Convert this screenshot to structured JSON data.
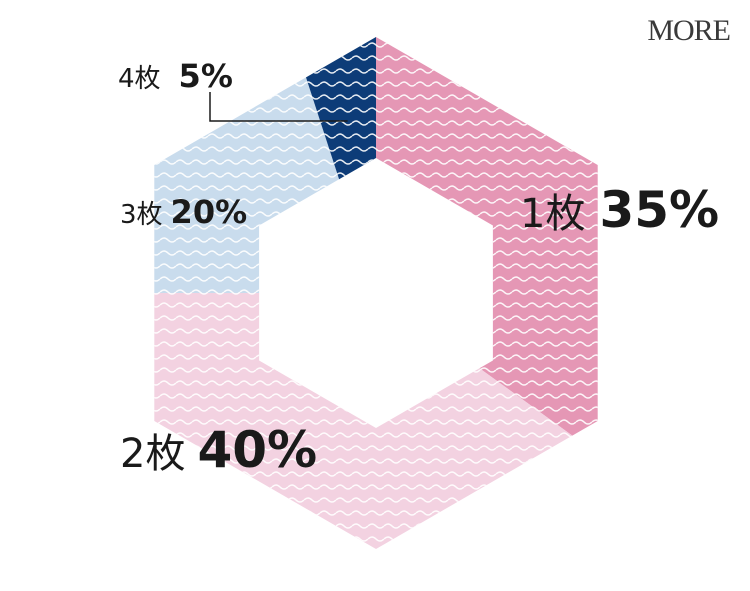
{
  "brand": {
    "logo_text": "MORE"
  },
  "chart_data": {
    "type": "pie",
    "shape": "hexagonal donut",
    "categories": [
      "1枚",
      "2枚",
      "3枚",
      "4枚"
    ],
    "values": [
      35,
      40,
      20,
      5
    ],
    "value_labels": [
      "35%",
      "40%",
      "20%",
      "5%"
    ],
    "colors": [
      "#e597b5",
      "#f3d2e1",
      "#c9dced",
      "#0d3c78"
    ],
    "pattern": "white wavy lines"
  }
}
